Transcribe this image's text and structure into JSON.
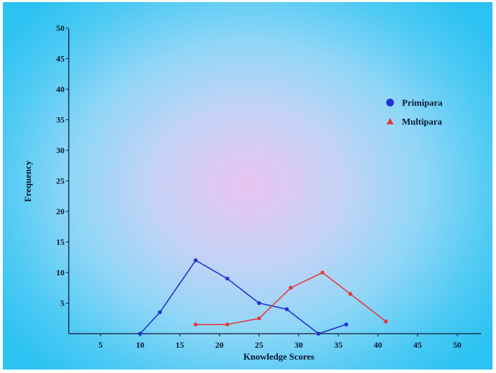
{
  "chart_data": {
    "type": "line",
    "xlabel": "Knowledge Scores",
    "ylabel": "Frequency",
    "xlim": [
      5,
      50
    ],
    "ylim": [
      0,
      50
    ],
    "x_ticks": [
      5,
      10,
      15,
      20,
      25,
      30,
      35,
      40,
      45,
      50
    ],
    "y_ticks": [
      5,
      10,
      15,
      20,
      25,
      30,
      35,
      40,
      45,
      50
    ],
    "legend_position": "top-right",
    "grid": false,
    "series": [
      {
        "name": "Primipara",
        "color": "#1f2fd6",
        "marker": "circle",
        "points": [
          {
            "x": 10,
            "y": 0
          },
          {
            "x": 12.5,
            "y": 3.5
          },
          {
            "x": 17,
            "y": 12
          },
          {
            "x": 21,
            "y": 9
          },
          {
            "x": 25,
            "y": 5
          },
          {
            "x": 28.5,
            "y": 4
          },
          {
            "x": 32.5,
            "y": 0
          },
          {
            "x": 36,
            "y": 1.5
          }
        ]
      },
      {
        "name": "Multipara",
        "color": "#e23b3b",
        "marker": "triangle",
        "points": [
          {
            "x": 17,
            "y": 1.5
          },
          {
            "x": 21,
            "y": 1.5
          },
          {
            "x": 25,
            "y": 2.5
          },
          {
            "x": 29,
            "y": 7.5
          },
          {
            "x": 33,
            "y": 10
          },
          {
            "x": 36.5,
            "y": 6.5
          },
          {
            "x": 41,
            "y": 2
          }
        ]
      }
    ]
  }
}
